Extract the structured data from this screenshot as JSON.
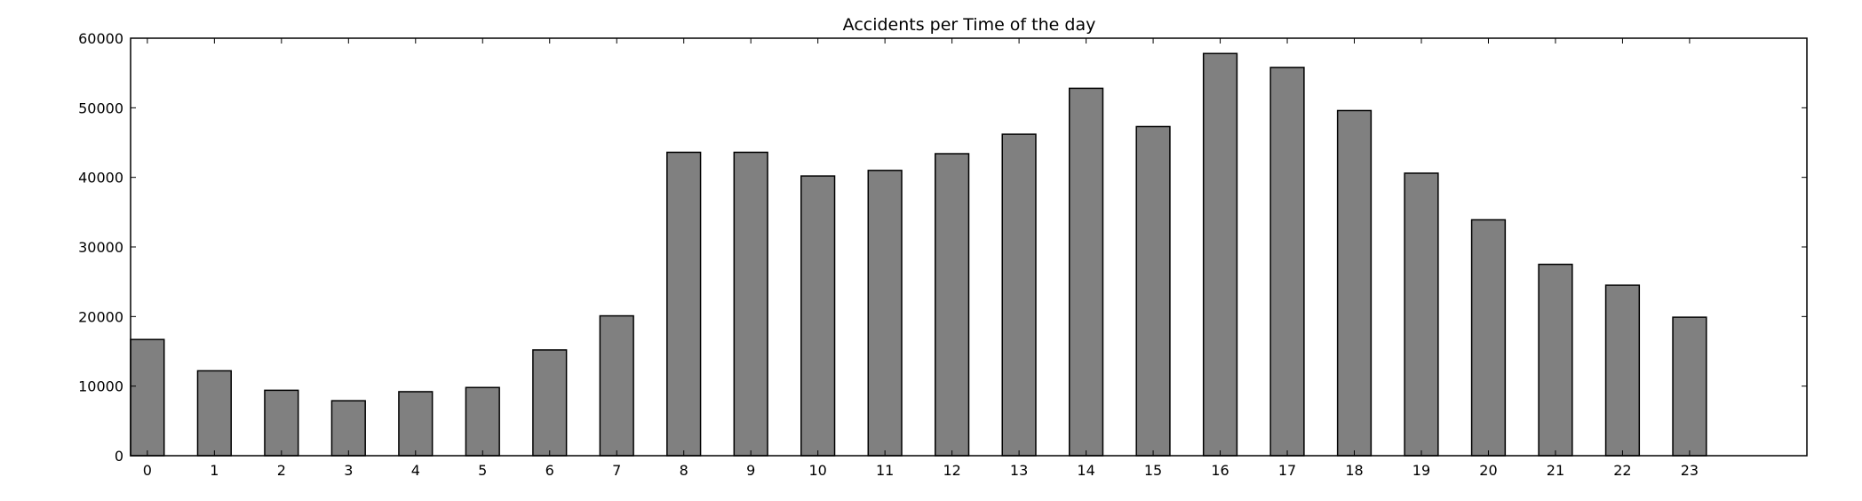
{
  "chart_data": {
    "type": "bar",
    "title": "Accidents per Time of the day",
    "xlabel": "",
    "ylabel": "",
    "categories": [
      "0",
      "1",
      "2",
      "3",
      "4",
      "5",
      "6",
      "7",
      "8",
      "9",
      "10",
      "11",
      "12",
      "13",
      "14",
      "15",
      "16",
      "17",
      "18",
      "19",
      "20",
      "21",
      "22",
      "23"
    ],
    "values": [
      16700,
      12200,
      9400,
      7900,
      9200,
      9800,
      15200,
      20100,
      43600,
      43600,
      40200,
      41000,
      43400,
      46200,
      52800,
      47300,
      57800,
      55800,
      49600,
      40600,
      33900,
      27500,
      24500,
      19900
    ],
    "ylim": [
      0,
      60000
    ],
    "yticks": [
      "0",
      "10000",
      "20000",
      "30000",
      "40000",
      "50000",
      "60000"
    ],
    "x_slots": 25,
    "bar_color": "#808080",
    "edge_color": "#000000",
    "grid": false,
    "legend": "none"
  }
}
